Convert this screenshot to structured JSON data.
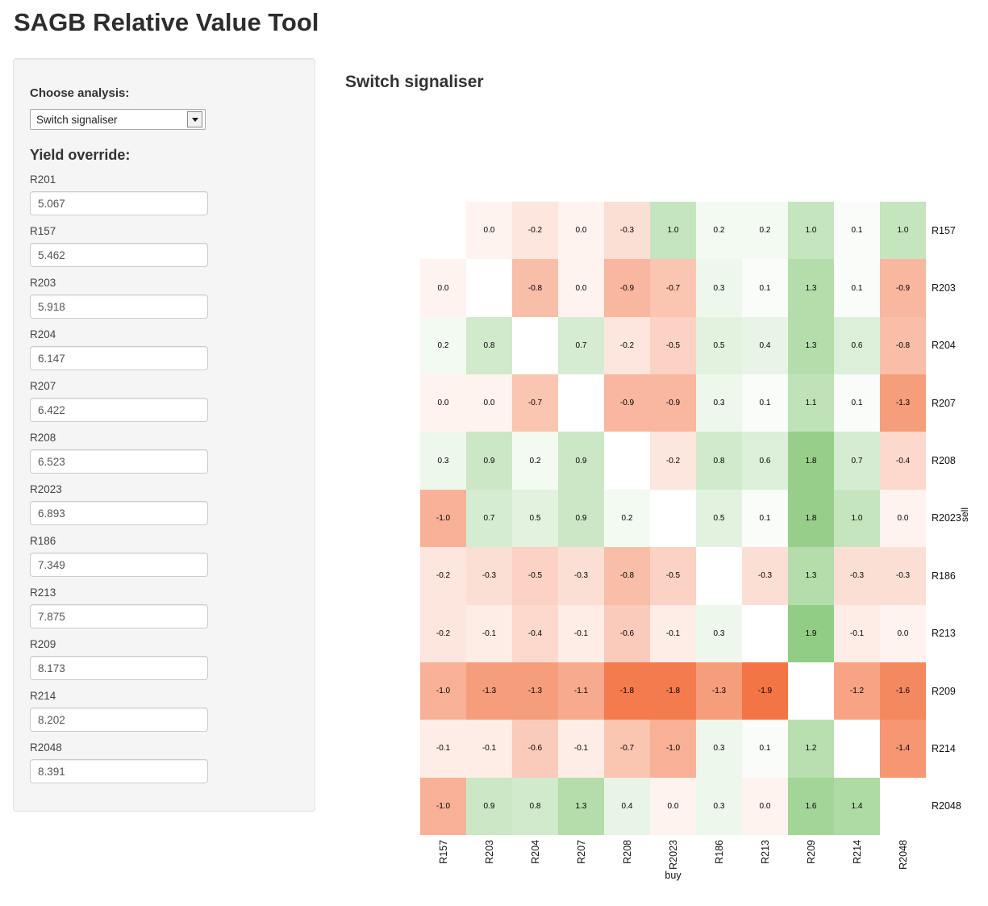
{
  "app": {
    "title": "SAGB Relative Value Tool"
  },
  "sidebar": {
    "choose_label": "Choose analysis:",
    "select_value": "Switch signaliser",
    "yield_label": "Yield override:",
    "fields": [
      {
        "label": "R201",
        "value": "5.067"
      },
      {
        "label": "R157",
        "value": "5.462"
      },
      {
        "label": "R203",
        "value": "5.918"
      },
      {
        "label": "R204",
        "value": "6.147"
      },
      {
        "label": "R207",
        "value": "6.422"
      },
      {
        "label": "R208",
        "value": "6.523"
      },
      {
        "label": "R2023",
        "value": "6.893"
      },
      {
        "label": "R186",
        "value": "7.349"
      },
      {
        "label": "R213",
        "value": "7.875"
      },
      {
        "label": "R209",
        "value": "8.173"
      },
      {
        "label": "R214",
        "value": "8.202"
      },
      {
        "label": "R2048",
        "value": "8.391"
      }
    ]
  },
  "main": {
    "heading": "Switch signaliser"
  },
  "chart_data": {
    "type": "heatmap",
    "title": "Switch signaliser",
    "xlabel": "buy",
    "ylabel": "sell",
    "rows": [
      "R157",
      "R203",
      "R204",
      "R207",
      "R208",
      "R2023",
      "R186",
      "R213",
      "R209",
      "R214",
      "R2048"
    ],
    "columns": [
      "R157",
      "R203",
      "R204",
      "R207",
      "R208",
      "R2023",
      "R186",
      "R213",
      "R209",
      "R214",
      "R2048"
    ],
    "values": [
      [
        null,
        0.0,
        -0.2,
        0.0,
        -0.3,
        1.0,
        0.2,
        0.2,
        1.0,
        0.1,
        1.0
      ],
      [
        0.0,
        null,
        -0.8,
        0.0,
        -0.9,
        -0.7,
        0.3,
        0.1,
        1.3,
        0.1,
        -0.9
      ],
      [
        0.2,
        0.8,
        null,
        0.7,
        -0.2,
        -0.5,
        0.5,
        0.4,
        1.3,
        0.6,
        -0.8
      ],
      [
        0.0,
        0.0,
        -0.7,
        null,
        -0.9,
        -0.9,
        0.3,
        0.1,
        1.1,
        0.1,
        -1.3
      ],
      [
        0.3,
        0.9,
        0.2,
        0.9,
        null,
        -0.2,
        0.8,
        0.6,
        1.8,
        0.7,
        -0.4
      ],
      [
        -1.0,
        0.7,
        0.5,
        0.9,
        0.2,
        null,
        0.5,
        0.1,
        1.8,
        1.0,
        0.0
      ],
      [
        -0.2,
        -0.3,
        -0.5,
        -0.3,
        -0.8,
        -0.5,
        null,
        -0.3,
        1.3,
        -0.3,
        -0.3
      ],
      [
        -0.2,
        -0.1,
        -0.4,
        -0.1,
        -0.6,
        -0.1,
        0.3,
        null,
        1.9,
        -0.1,
        0.0
      ],
      [
        -1.0,
        -1.3,
        -1.3,
        -1.1,
        -1.8,
        -1.8,
        -1.3,
        -1.9,
        null,
        -1.2,
        -1.6
      ],
      [
        -0.1,
        -0.1,
        -0.6,
        -0.1,
        -0.7,
        -1.0,
        0.3,
        0.1,
        1.2,
        null,
        -1.4
      ],
      [
        -1.0,
        0.9,
        0.8,
        1.3,
        0.4,
        0.0,
        0.3,
        0.0,
        1.6,
        1.4,
        null
      ]
    ],
    "value_range": [
      -2,
      2
    ],
    "legend_position": "none",
    "grid": false,
    "colors": {
      "positive_max": "#8bca7d",
      "negative_max": "#f26e3c",
      "near_zero": "#fef3ef",
      "diagonal": "#ffffff"
    }
  }
}
